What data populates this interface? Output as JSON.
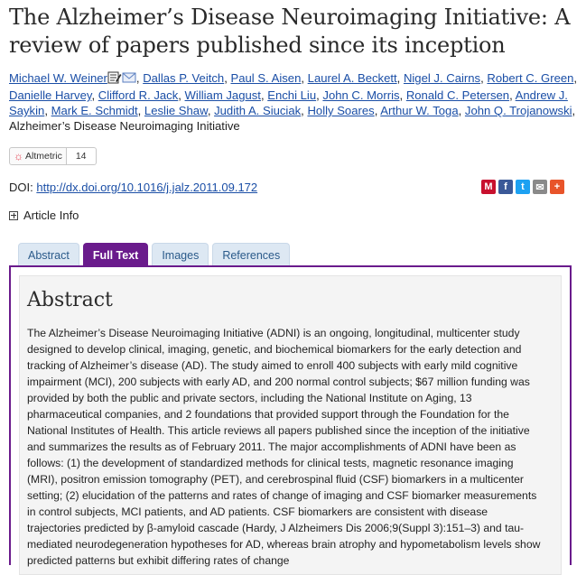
{
  "article": {
    "title": "The Alzheimer’s Disease Neuroimaging Initiative: A review of papers published since its inception"
  },
  "authors": [
    "Michael W. Weiner",
    "Dallas P. Veitch",
    "Paul S. Aisen",
    "Laurel A. Beckett",
    "Nigel J. Cairns",
    "Robert C. Green",
    "Danielle Harvey",
    "Clifford R. Jack",
    "William Jagust",
    "Enchi Liu",
    "John C. Morris",
    "Ronald C. Petersen",
    "Andrew J. Saykin",
    "Mark E. Schmidt",
    "Leslie Shaw",
    "Judith A. Siuciak",
    "Holly Soares",
    "Arthur W. Toga",
    "John Q. Trojanowski"
  ],
  "group_author": "Alzheimer’s Disease Neuroimaging Initiative",
  "altmetric": {
    "label": "Altmetric",
    "count": "14"
  },
  "doi": {
    "label": "DOI:",
    "link": "http://dx.doi.org/10.1016/j.jalz.2011.09.172"
  },
  "share_icons": [
    {
      "name": "mendeley-icon",
      "glyph": "M",
      "color": "#c8102e"
    },
    {
      "name": "facebook-icon",
      "glyph": "f",
      "color": "#3b5998"
    },
    {
      "name": "twitter-icon",
      "glyph": "t",
      "color": "#1da1f2"
    },
    {
      "name": "email-icon",
      "glyph": "✉",
      "color": "#8a8a8a"
    },
    {
      "name": "more-icon",
      "glyph": "+",
      "color": "#e8542a"
    }
  ],
  "article_info": {
    "label": "Article Info"
  },
  "tabs": [
    {
      "label": "Abstract",
      "active": false
    },
    {
      "label": "Full Text",
      "active": true
    },
    {
      "label": "Images",
      "active": false
    },
    {
      "label": "References",
      "active": false
    }
  ],
  "abstract": {
    "heading": "Abstract",
    "text": "The Alzheimer’s Disease Neuroimaging Initiative (ADNI) is an ongoing, longitudinal, multicenter study designed to develop clinical, imaging, genetic, and biochemical biomarkers for the early detection and tracking of Alzheimer’s disease (AD). The study aimed to enroll 400 subjects with early mild cognitive impairment (MCI), 200 subjects with early AD, and 200 normal control subjects; $67 million funding was provided by both the public and private sectors, including the National Institute on Aging, 13 pharmaceutical companies, and 2 foundations that provided support through the Foundation for the National Institutes of Health. This article reviews all papers published since the inception of the initiative and summarizes the results as of February 2011. The major accomplishments of ADNI have been as follows: (1) the development of standardized methods for clinical tests, magnetic resonance imaging (MRI), positron emission tomography (PET), and cerebrospinal fluid (CSF) biomarkers in a multicenter setting; (2) elucidation of the patterns and rates of change of imaging and CSF biomarker measurements in control subjects, MCI patients, and AD patients. CSF biomarkers are consistent with disease trajectories predicted by β-amyloid cascade (Hardy, J Alzheimers Dis 2006;9(Suppl 3):151–3) and tau-mediated neurodegeneration hypotheses for AD, whereas brain atrophy and hypometabolism levels show predicted patterns but exhibit differing rates of change"
  }
}
